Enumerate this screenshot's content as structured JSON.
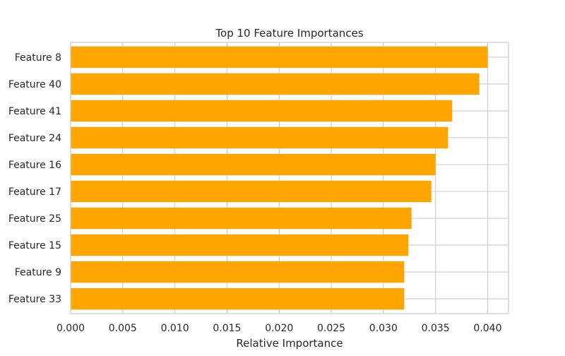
{
  "chart_data": {
    "type": "bar",
    "orientation": "horizontal",
    "title": "Top 10 Feature Importances",
    "xlabel": "Relative Importance",
    "ylabel": "",
    "xlim": [
      0,
      0.042
    ],
    "xticks": [
      "0.000",
      "0.005",
      "0.010",
      "0.015",
      "0.020",
      "0.025",
      "0.030",
      "0.035",
      "0.040"
    ],
    "categories": [
      "Feature 8",
      "Feature 40",
      "Feature 41",
      "Feature 24",
      "Feature 16",
      "Feature 17",
      "Feature 25",
      "Feature 15",
      "Feature 9",
      "Feature 33"
    ],
    "values": [
      0.04,
      0.0392,
      0.0366,
      0.0362,
      0.035,
      0.0346,
      0.0327,
      0.0324,
      0.032,
      0.032
    ],
    "grid": true,
    "colors": {
      "bar": "#ffa500",
      "grid": "#cccccc",
      "spine": "#cccccc",
      "text": "#262626"
    }
  }
}
